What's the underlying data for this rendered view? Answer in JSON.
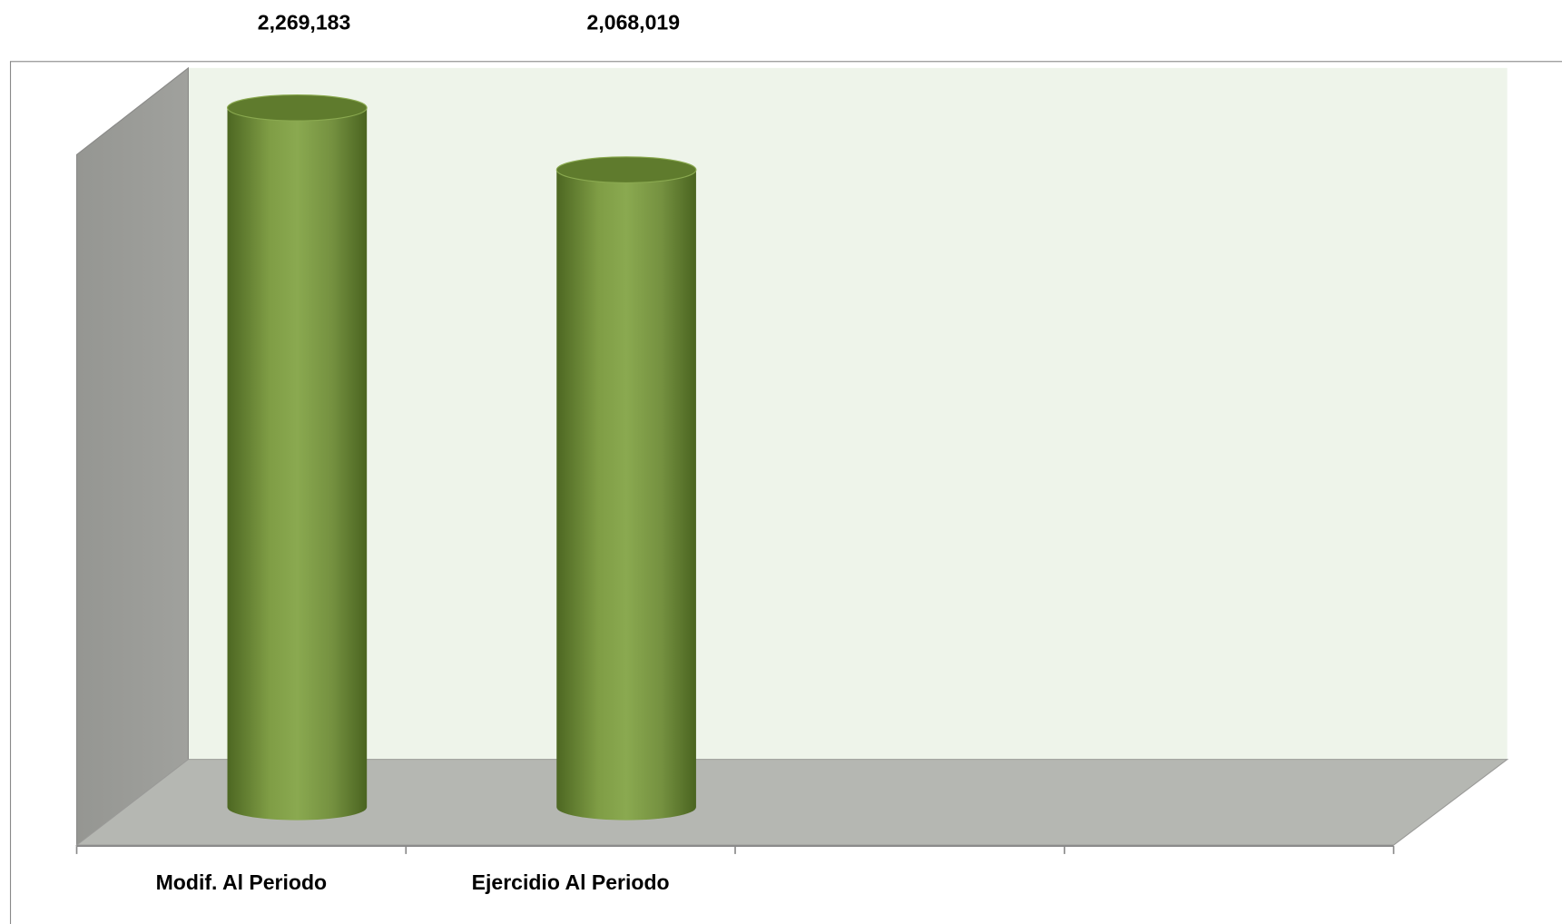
{
  "chart_data": {
    "type": "cylinder",
    "categories": [
      "Modif. Al Periodo",
      "Ejercidio Al Periodo",
      null,
      null
    ],
    "values": [
      2269183,
      2068019,
      null,
      null
    ],
    "value_labels": [
      "2,269,183",
      "2,068,019",
      null,
      null
    ],
    "color": "#7f9d45"
  }
}
